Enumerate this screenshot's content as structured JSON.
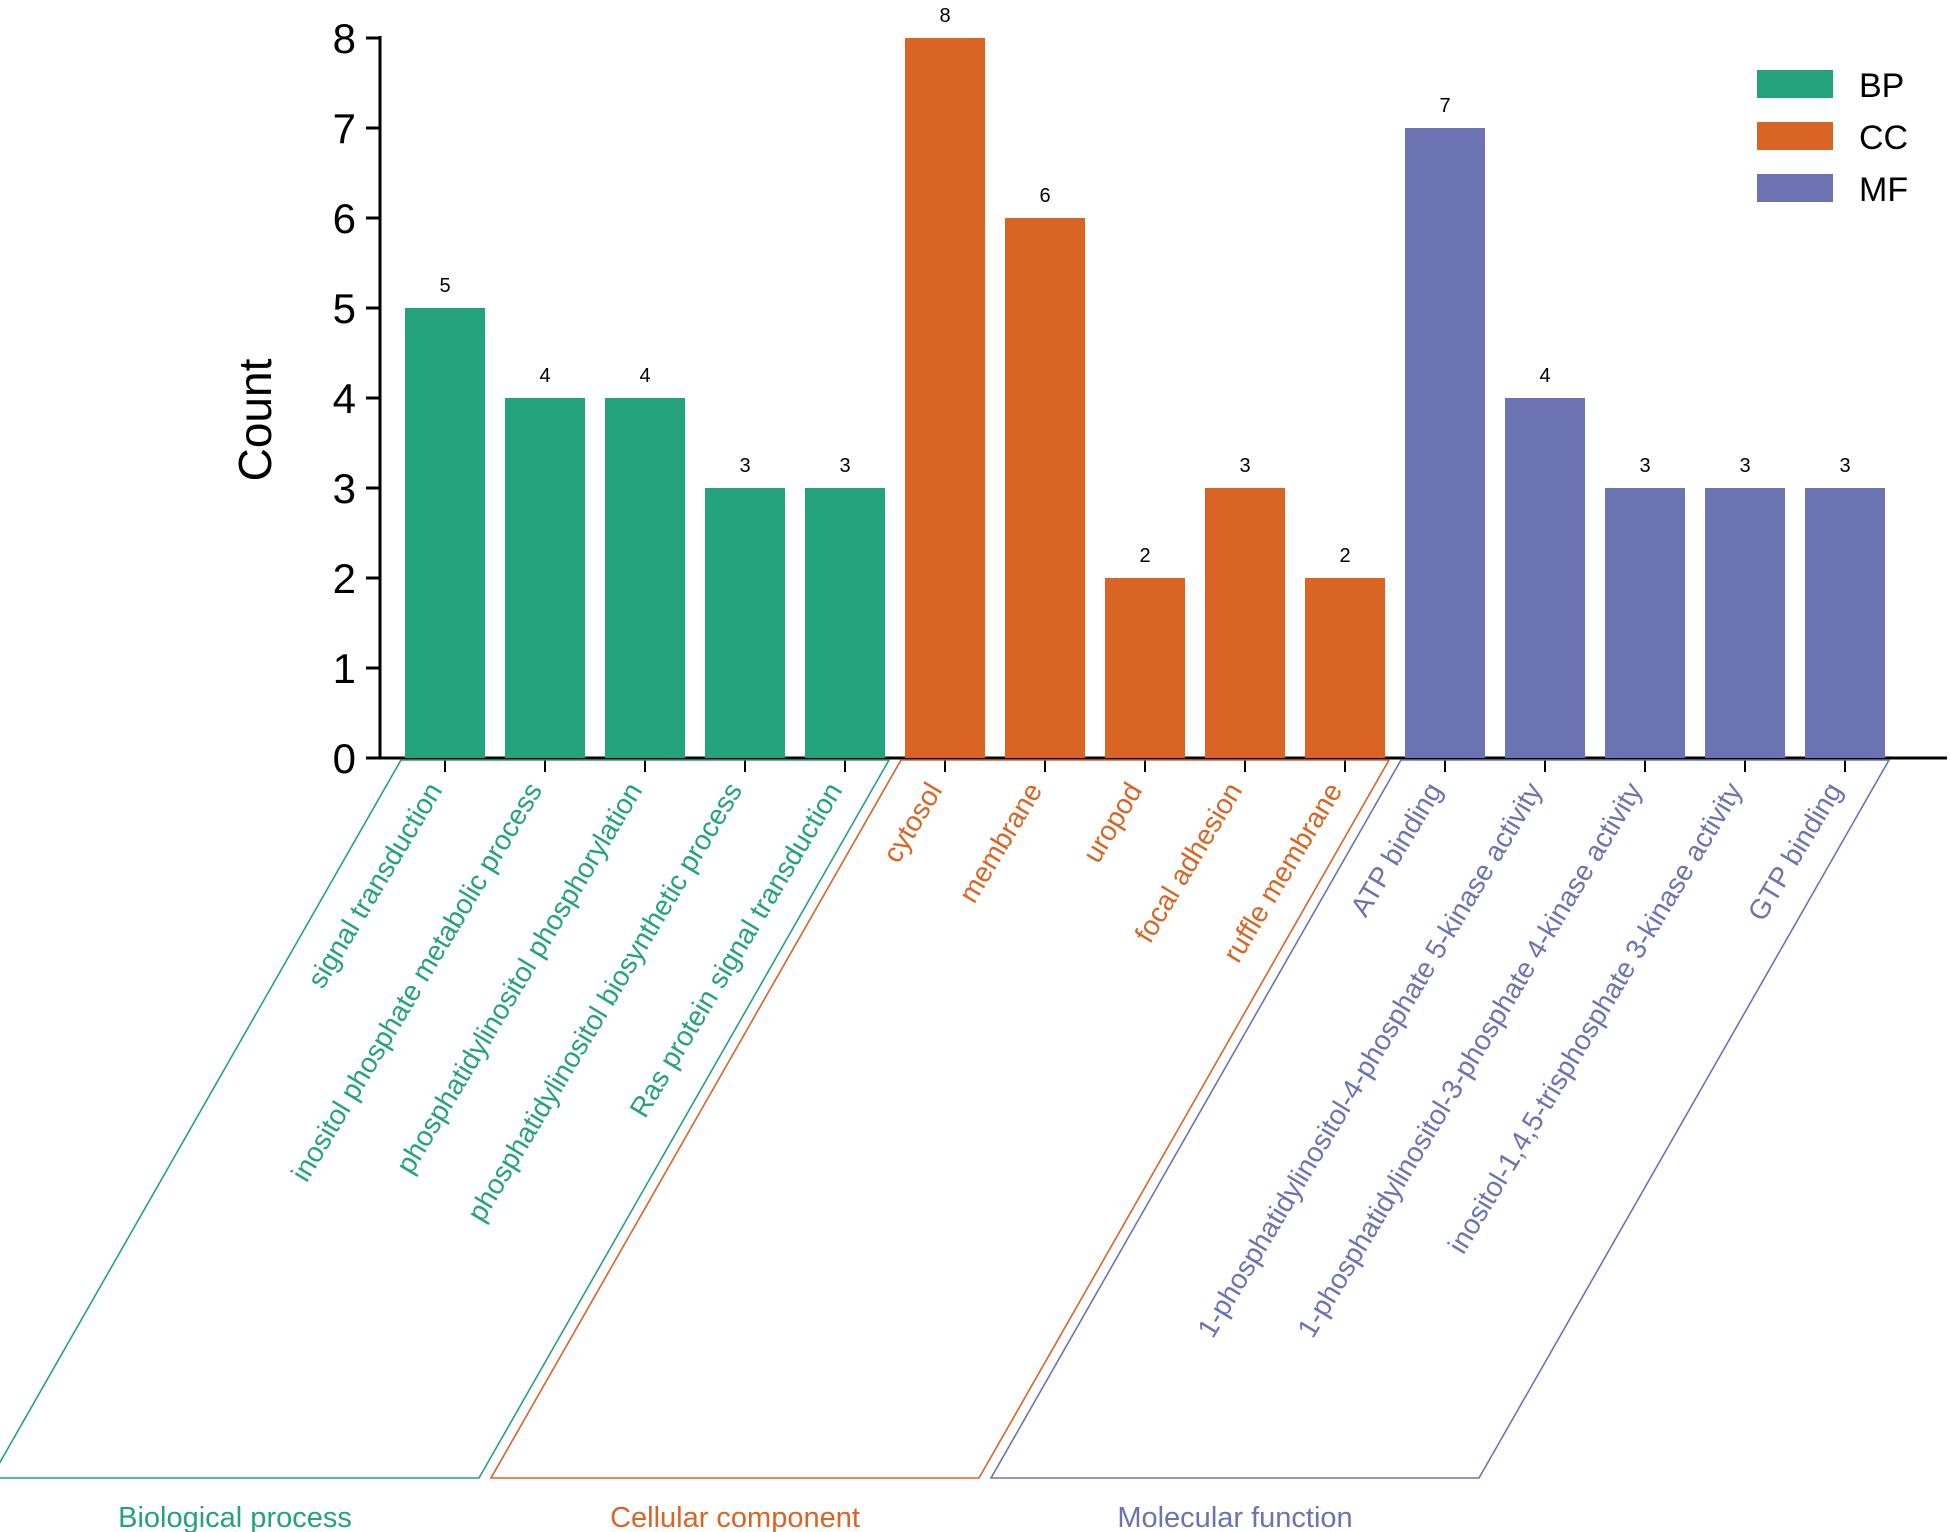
{
  "chart_data": {
    "type": "bar",
    "title": "",
    "xlabel": "",
    "ylabel": "Count",
    "ylim": [
      0,
      8
    ],
    "yticks": [
      0,
      1,
      2,
      3,
      4,
      5,
      6,
      7,
      8
    ],
    "grid": false,
    "legend_position": "top-right",
    "groups": [
      {
        "key": "BP",
        "name": "Biological process",
        "color": "#24a27b",
        "categories": [
          "signal transduction",
          "inositol phosphate metabolic process",
          "phosphatidylinositol phosphorylation",
          "phosphatidylinositol biosynthetic process",
          "Ras protein signal transduction"
        ],
        "values": [
          5,
          4,
          4,
          3,
          3
        ]
      },
      {
        "key": "CC",
        "name": "Cellular component",
        "color": "#d96423",
        "categories": [
          "cytosol",
          "membrane",
          "uropod",
          "focal adhesion",
          "ruffle membrane"
        ],
        "values": [
          8,
          6,
          2,
          3,
          2
        ]
      },
      {
        "key": "MF",
        "name": "Molecular function",
        "color": "#6b73b2",
        "categories": [
          "ATP binding",
          "1-phosphatidylinositol-4-phosphate 5-kinase activity",
          "1-phosphatidylinositol-3-phosphate 4-kinase activity",
          "inositol-1,4,5-trisphosphate 3-kinase activity",
          "GTP binding"
        ],
        "values": [
          7,
          4,
          3,
          3,
          3
        ]
      }
    ],
    "legend": [
      {
        "label": "BP",
        "color": "#24a27b"
      },
      {
        "label": "CC",
        "color": "#d96423"
      },
      {
        "label": "MF",
        "color": "#6b73b2"
      }
    ]
  }
}
